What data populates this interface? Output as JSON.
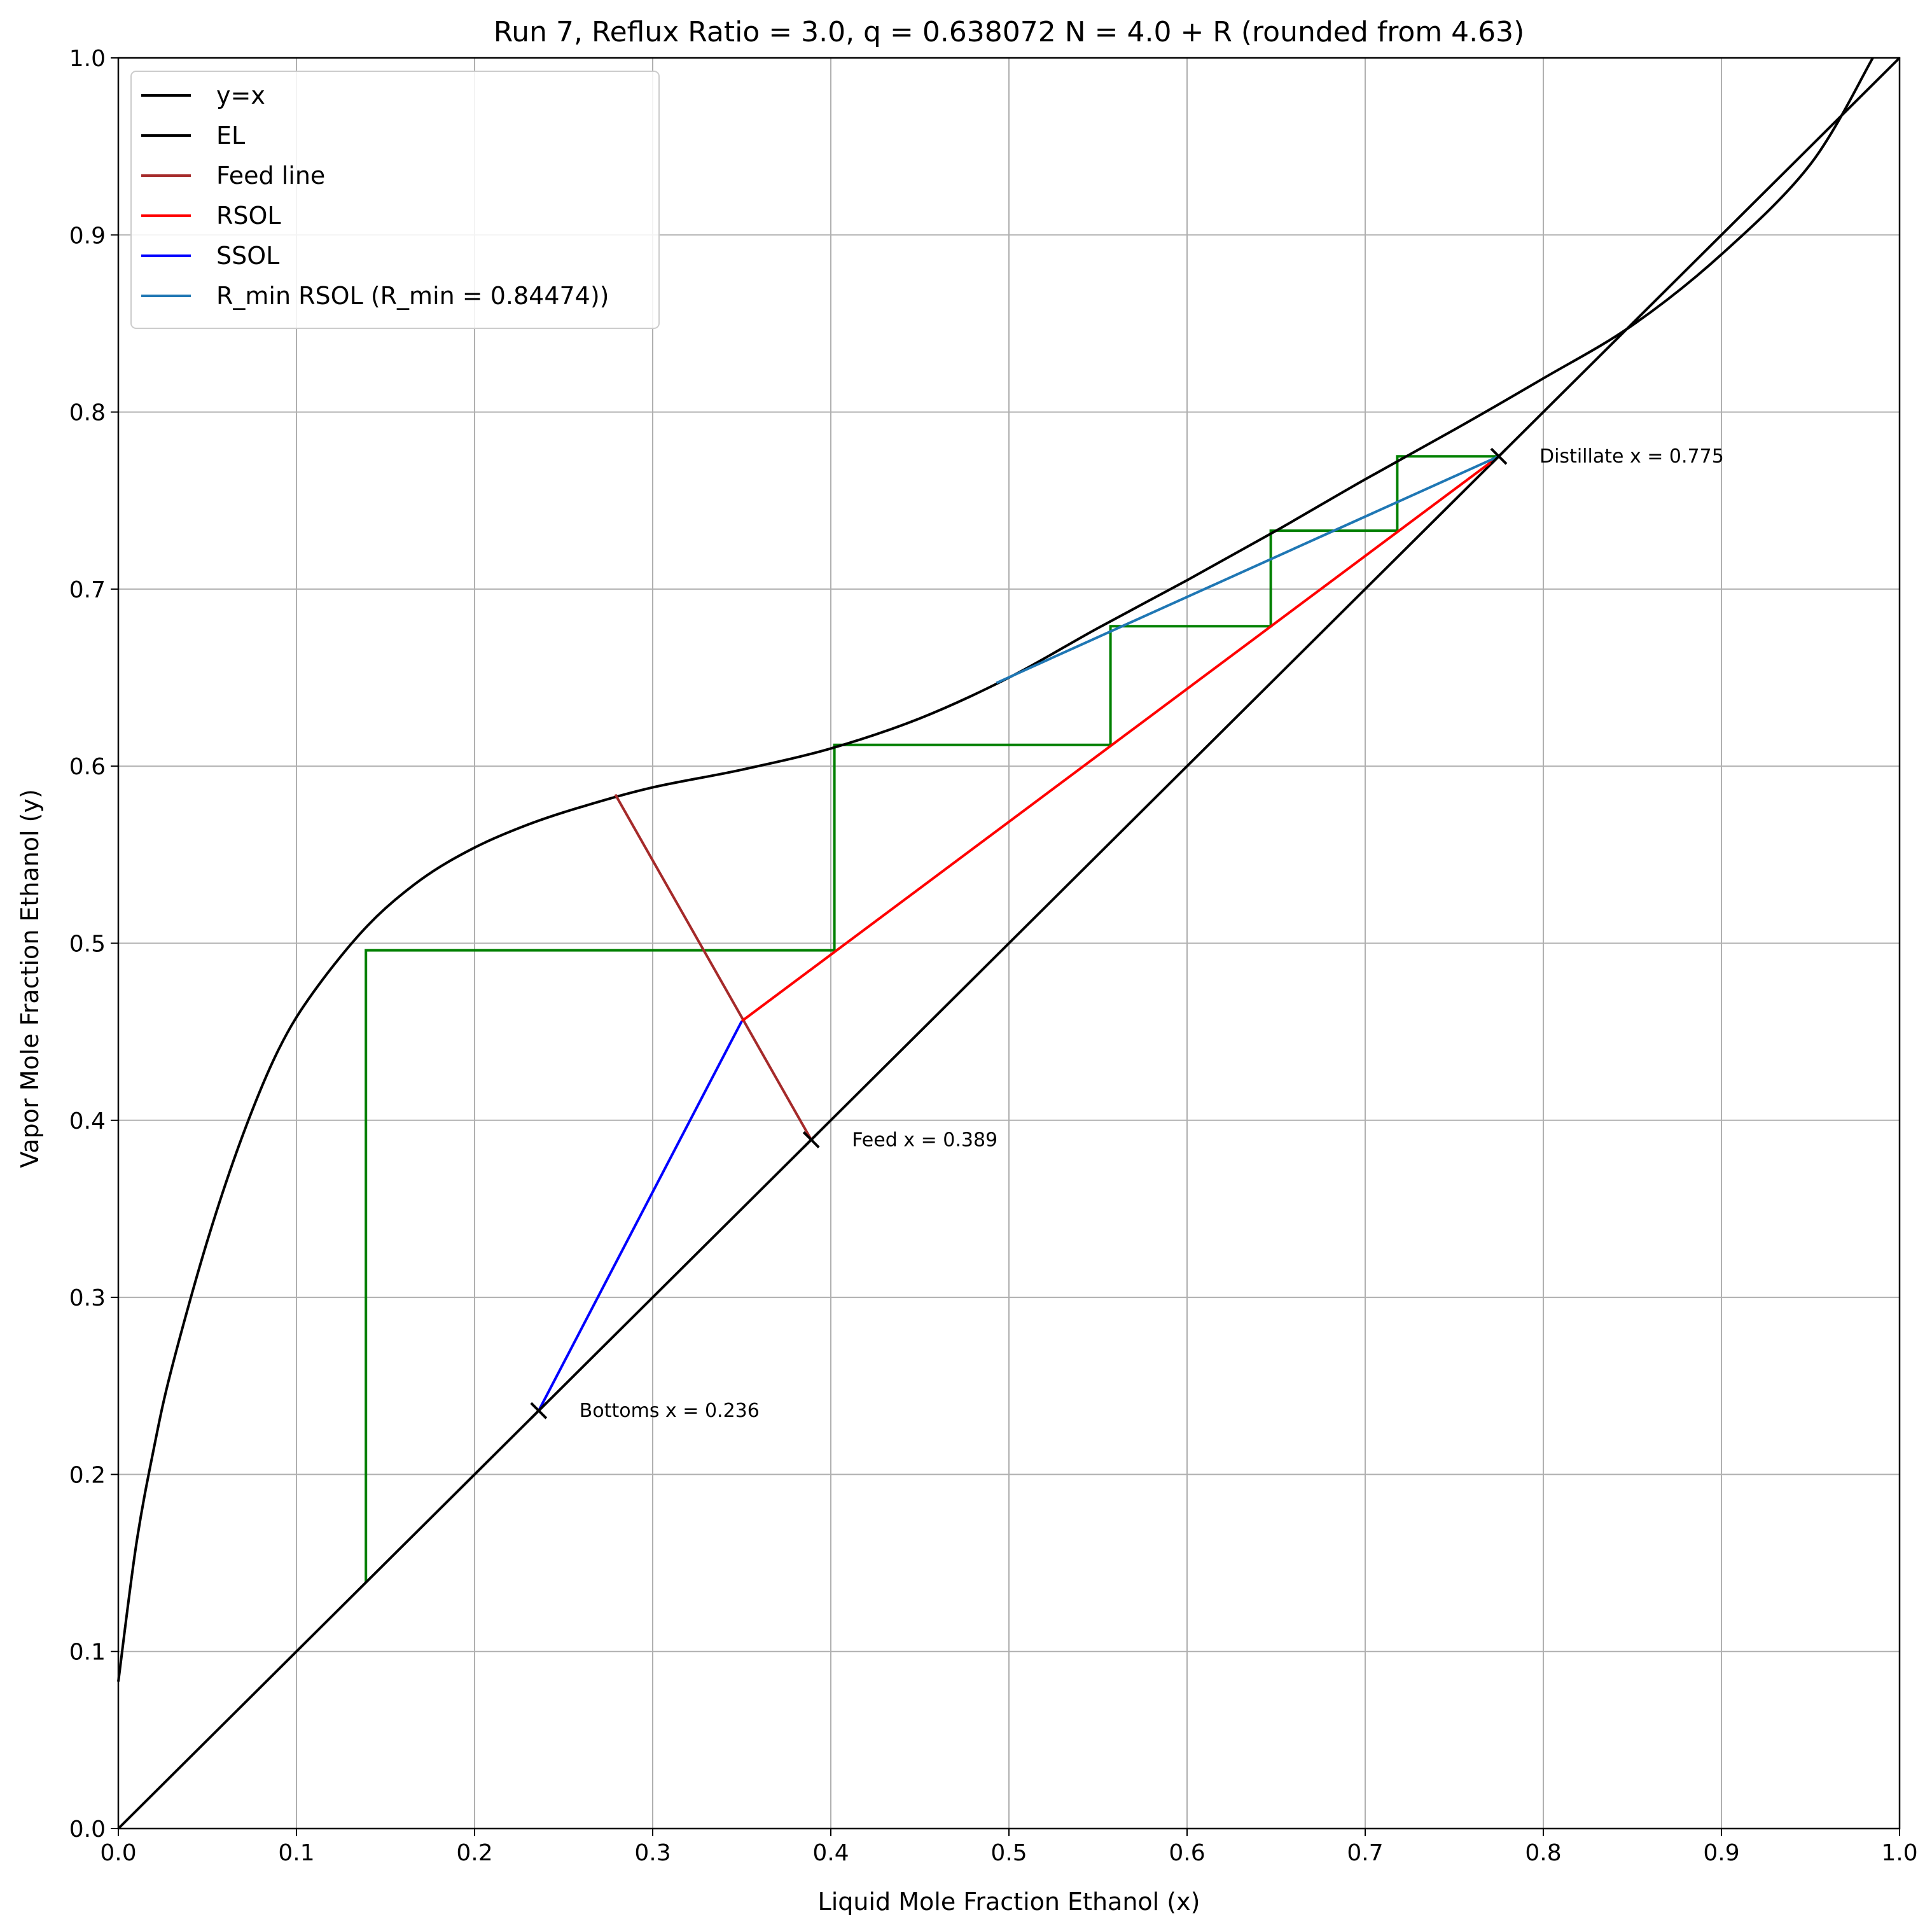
{
  "chart_data": {
    "type": "line",
    "title": "Run 7, Reflux Ratio = 3.0, q = 0.638072 N = 4.0 + R (rounded from 4.63)",
    "xlabel": "Liquid Mole Fraction Ethanol (x)",
    "ylabel": "Vapor Mole Fraction Ethanol (y)",
    "xlim": [
      0,
      1
    ],
    "ylim": [
      0,
      1
    ],
    "xticks": [
      "0.0",
      "0.1",
      "0.2",
      "0.3",
      "0.4",
      "0.5",
      "0.6",
      "0.7",
      "0.8",
      "0.9",
      "1.0"
    ],
    "yticks": [
      "0.0",
      "0.1",
      "0.2",
      "0.3",
      "0.4",
      "0.5",
      "0.6",
      "0.7",
      "0.8",
      "0.9",
      "1.0"
    ],
    "grid": true,
    "legend_position": "top-left",
    "series": [
      {
        "name": "y=x",
        "color": "#000000",
        "x": [
          0,
          1
        ],
        "y": [
          0,
          1
        ]
      },
      {
        "name": "EL",
        "color": "#000000",
        "x": [
          0.0,
          0.01,
          0.02,
          0.03,
          0.05,
          0.07,
          0.09,
          0.11,
          0.14,
          0.17,
          0.2,
          0.23,
          0.26,
          0.3,
          0.35,
          0.4,
          0.45,
          0.5,
          0.55,
          0.6,
          0.65,
          0.7,
          0.75,
          0.8,
          0.85,
          0.9,
          0.95,
          0.985
        ],
        "y": [
          0.083,
          0.16,
          0.215,
          0.26,
          0.332,
          0.392,
          0.44,
          0.473,
          0.51,
          0.536,
          0.554,
          0.567,
          0.577,
          0.588,
          0.598,
          0.61,
          0.627,
          0.65,
          0.678,
          0.705,
          0.733,
          0.762,
          0.79,
          0.819,
          0.849,
          0.889,
          0.94,
          1.0
        ]
      },
      {
        "name": "Feed line",
        "color": "#a52a2a",
        "x": [
          0.279,
          0.389
        ],
        "y": [
          0.584,
          0.389
        ]
      },
      {
        "name": "RSOL",
        "color": "#ff0000",
        "x": [
          0.35,
          0.775
        ],
        "y": [
          0.456,
          0.775
        ]
      },
      {
        "name": "SSOL",
        "color": "#0000ff",
        "x": [
          0.236,
          0.35
        ],
        "y": [
          0.236,
          0.456
        ]
      },
      {
        "name": "R_min RSOL (R_min = 0.84474))",
        "color": "#1f77b4",
        "x": [
          0.493,
          0.775
        ],
        "y": [
          0.647,
          0.775
        ]
      }
    ],
    "stages": {
      "color": "#008000",
      "x": [
        0.775,
        0.718,
        0.718,
        0.647,
        0.647,
        0.557,
        0.557,
        0.402,
        0.402,
        0.139,
        0.139
      ],
      "y": [
        0.775,
        0.775,
        0.733,
        0.733,
        0.679,
        0.679,
        0.612,
        0.612,
        0.496,
        0.496,
        0.139
      ]
    },
    "markers": [
      {
        "x": 0.775,
        "y": 0.775,
        "label": "Distillate x = 0.775"
      },
      {
        "x": 0.389,
        "y": 0.389,
        "label": "Feed x = 0.389"
      },
      {
        "x": 0.236,
        "y": 0.236,
        "label": "Bottoms x = 0.236"
      }
    ]
  }
}
